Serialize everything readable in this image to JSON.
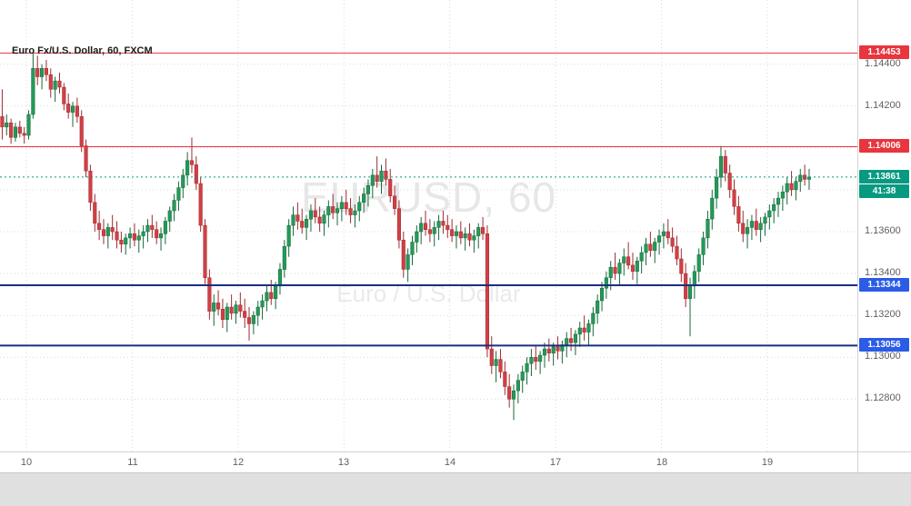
{
  "chart": {
    "title": "Euro Fx/U.S. Dollar, 60, FXCM",
    "watermark": {
      "line1": "EURUSD, 60",
      "line2": "Euro / U.S. Dollar"
    }
  },
  "colors": {
    "up": "#239a57",
    "up_border": "#17663c",
    "down": "#d23f44",
    "down_border": "#9e2b30",
    "grid": "#d9d9d9",
    "axis_text": "#5f5f5f",
    "resistance": "#e8353e",
    "support_line": "#1a2f7d",
    "support_badge": "#2b5ce6",
    "current": "#089981",
    "watermark": "#e7e7e7",
    "background": "#ffffff"
  },
  "price_axis": {
    "labels": [
      {
        "text": "1.14400",
        "price": 1.144
      },
      {
        "text": "1.14200",
        "price": 1.142
      },
      {
        "text": "1.13600",
        "price": 1.136
      },
      {
        "text": "1.13400",
        "price": 1.134
      },
      {
        "text": "1.13200",
        "price": 1.132
      },
      {
        "text": "1.13000",
        "price": 1.13
      },
      {
        "text": "1.12800",
        "price": 1.128
      }
    ],
    "badges": [
      {
        "text": "1.14453",
        "price": 1.14453,
        "bg": "#e8353e"
      },
      {
        "text": "1.14006",
        "price": 1.14006,
        "bg": "#e8353e"
      },
      {
        "text": "1.13861",
        "price": 1.13861,
        "bg": "#089981",
        "countdown": "41:38"
      },
      {
        "text": "1.13344",
        "price": 1.13344,
        "bg": "#2b5ce6"
      },
      {
        "text": "1.13056",
        "price": 1.13056,
        "bg": "#2b5ce6"
      }
    ]
  },
  "time_axis": {
    "labels": [
      {
        "text": "10",
        "slot": 6
      },
      {
        "text": "11",
        "slot": 30
      },
      {
        "text": "12",
        "slot": 54
      },
      {
        "text": "13",
        "slot": 78
      },
      {
        "text": "14",
        "slot": 102
      },
      {
        "text": "17",
        "slot": 126
      },
      {
        "text": "18",
        "slot": 150
      },
      {
        "text": "19",
        "slot": 174
      }
    ]
  },
  "lines": [
    {
      "price": 1.14453,
      "color": "#e8353e",
      "style": "solid",
      "width": 1
    },
    {
      "price": 1.14006,
      "color": "#e8353e",
      "style": "solid",
      "width": 1
    },
    {
      "price": 1.13861,
      "color": "#089981",
      "style": "dotted",
      "width": 1
    },
    {
      "price": 1.13344,
      "color": "#1a2f7d",
      "style": "solid",
      "width": 2
    },
    {
      "price": 1.13056,
      "color": "#1a2f7d",
      "style": "solid",
      "width": 2
    }
  ],
  "grid": {
    "h_prices": [
      1.144,
      1.142,
      1.14,
      1.138,
      1.136,
      1.134,
      1.132,
      1.13,
      1.128
    ],
    "v_slots": [
      6,
      30,
      54,
      78,
      102,
      126,
      150,
      174
    ]
  },
  "chart_data": {
    "type": "candlestick",
    "title": "Euro Fx/U.S. Dollar, 60, FXCM",
    "symbol": "EURUSD",
    "interval_minutes": 60,
    "provider": "FXCM",
    "x_axis_day_labels": [
      "10",
      "11",
      "12",
      "13",
      "14",
      "17",
      "18",
      "19"
    ],
    "y_range": [
      1.1255,
      1.1452
    ],
    "price_levels": {
      "resistance": [
        1.14453,
        1.14006
      ],
      "support": [
        1.13344,
        1.13056
      ],
      "last_price": 1.13861,
      "bar_countdown": "41:38"
    },
    "ohlc_format": [
      "open",
      "high",
      "low",
      "close"
    ],
    "candles": [
      [
        1.1415,
        1.1428,
        1.1404,
        1.141
      ],
      [
        1.141,
        1.1416,
        1.1406,
        1.1412
      ],
      [
        1.1412,
        1.1414,
        1.1402,
        1.1405
      ],
      [
        1.1405,
        1.1412,
        1.1403,
        1.141
      ],
      [
        1.141,
        1.1413,
        1.1405,
        1.1407
      ],
      [
        1.1407,
        1.141,
        1.1402,
        1.1406
      ],
      [
        1.1406,
        1.1418,
        1.1404,
        1.1416
      ],
      [
        1.1416,
        1.14453,
        1.1414,
        1.1438
      ],
      [
        1.1438,
        1.1444,
        1.143,
        1.1434
      ],
      [
        1.1434,
        1.144,
        1.1428,
        1.1438
      ],
      [
        1.1438,
        1.1442,
        1.1432,
        1.1435
      ],
      [
        1.1435,
        1.1438,
        1.1424,
        1.1428
      ],
      [
        1.1428,
        1.1434,
        1.1422,
        1.1432
      ],
      [
        1.1432,
        1.1436,
        1.1426,
        1.1429
      ],
      [
        1.1429,
        1.1431,
        1.1418,
        1.1421
      ],
      [
        1.1421,
        1.1426,
        1.1414,
        1.1417
      ],
      [
        1.1417,
        1.1422,
        1.141,
        1.142
      ],
      [
        1.142,
        1.1424,
        1.1412,
        1.1415
      ],
      [
        1.1415,
        1.1418,
        1.1398,
        1.1401
      ],
      [
        1.1401,
        1.1404,
        1.1386,
        1.1389
      ],
      [
        1.1389,
        1.1392,
        1.137,
        1.1374
      ],
      [
        1.1374,
        1.1378,
        1.136,
        1.1364
      ],
      [
        1.1364,
        1.137,
        1.1356,
        1.1361
      ],
      [
        1.1361,
        1.1366,
        1.1354,
        1.1358
      ],
      [
        1.1358,
        1.1364,
        1.1352,
        1.1362
      ],
      [
        1.1362,
        1.1368,
        1.1356,
        1.136
      ],
      [
        1.136,
        1.1365,
        1.1352,
        1.1356
      ],
      [
        1.1356,
        1.136,
        1.135,
        1.1354
      ],
      [
        1.1354,
        1.1359,
        1.1349,
        1.1357
      ],
      [
        1.1357,
        1.1362,
        1.1352,
        1.1359
      ],
      [
        1.1359,
        1.1364,
        1.1353,
        1.1356
      ],
      [
        1.1356,
        1.1361,
        1.135,
        1.1358
      ],
      [
        1.1358,
        1.1363,
        1.1352,
        1.136
      ],
      [
        1.136,
        1.1366,
        1.1355,
        1.1363
      ],
      [
        1.1363,
        1.1368,
        1.1357,
        1.1361
      ],
      [
        1.1361,
        1.1365,
        1.1354,
        1.1357
      ],
      [
        1.1357,
        1.1362,
        1.1351,
        1.1359
      ],
      [
        1.1359,
        1.1367,
        1.1354,
        1.1365
      ],
      [
        1.1365,
        1.1372,
        1.136,
        1.137
      ],
      [
        1.137,
        1.1378,
        1.1365,
        1.1375
      ],
      [
        1.1375,
        1.1384,
        1.137,
        1.1381
      ],
      [
        1.1381,
        1.139,
        1.1376,
        1.1387
      ],
      [
        1.1387,
        1.1398,
        1.1382,
        1.1394
      ],
      [
        1.1394,
        1.1405,
        1.1388,
        1.1392
      ],
      [
        1.1392,
        1.1396,
        1.138,
        1.1383
      ],
      [
        1.1383,
        1.1386,
        1.136,
        1.1363
      ],
      [
        1.1363,
        1.1366,
        1.1335,
        1.1338
      ],
      [
        1.1338,
        1.1342,
        1.1318,
        1.1322
      ],
      [
        1.1322,
        1.133,
        1.1315,
        1.1326
      ],
      [
        1.1326,
        1.1332,
        1.132,
        1.1323
      ],
      [
        1.1323,
        1.1328,
        1.1314,
        1.1318
      ],
      [
        1.1318,
        1.1326,
        1.1312,
        1.1324
      ],
      [
        1.1324,
        1.133,
        1.1318,
        1.1321
      ],
      [
        1.1321,
        1.1327,
        1.1316,
        1.1325
      ],
      [
        1.1325,
        1.1331,
        1.1319,
        1.1322
      ],
      [
        1.1322,
        1.1328,
        1.1314,
        1.1319
      ],
      [
        1.1319,
        1.1324,
        1.1308,
        1.1316
      ],
      [
        1.1316,
        1.1322,
        1.1311,
        1.132
      ],
      [
        1.132,
        1.1327,
        1.1315,
        1.1324
      ],
      [
        1.1324,
        1.133,
        1.1318,
        1.1327
      ],
      [
        1.1327,
        1.1334,
        1.1322,
        1.1331
      ],
      [
        1.1331,
        1.1337,
        1.1325,
        1.1328
      ],
      [
        1.1328,
        1.1336,
        1.1323,
        1.1334
      ],
      [
        1.1334,
        1.1345,
        1.133,
        1.1342
      ],
      [
        1.1342,
        1.1356,
        1.1338,
        1.1353
      ],
      [
        1.1353,
        1.1366,
        1.1348,
        1.1363
      ],
      [
        1.1363,
        1.1372,
        1.1358,
        1.1368
      ],
      [
        1.1368,
        1.1374,
        1.1361,
        1.1365
      ],
      [
        1.1365,
        1.1371,
        1.1359,
        1.1362
      ],
      [
        1.1362,
        1.1368,
        1.1356,
        1.1366
      ],
      [
        1.1366,
        1.1373,
        1.136,
        1.137
      ],
      [
        1.137,
        1.1376,
        1.1364,
        1.1367
      ],
      [
        1.1367,
        1.1372,
        1.136,
        1.1364
      ],
      [
        1.1364,
        1.137,
        1.1358,
        1.1368
      ],
      [
        1.1368,
        1.1375,
        1.1362,
        1.1372
      ],
      [
        1.1372,
        1.1378,
        1.1366,
        1.1369
      ],
      [
        1.1369,
        1.1374,
        1.1363,
        1.1371
      ],
      [
        1.1371,
        1.1377,
        1.1365,
        1.1374
      ],
      [
        1.1374,
        1.138,
        1.1368,
        1.1371
      ],
      [
        1.1371,
        1.1376,
        1.1364,
        1.1368
      ],
      [
        1.1368,
        1.1373,
        1.1362,
        1.137
      ],
      [
        1.137,
        1.1377,
        1.1365,
        1.1374
      ],
      [
        1.1374,
        1.1381,
        1.1369,
        1.1378
      ],
      [
        1.1378,
        1.1385,
        1.1372,
        1.1382
      ],
      [
        1.1382,
        1.139,
        1.1376,
        1.1387
      ],
      [
        1.1387,
        1.1396,
        1.1381,
        1.1384
      ],
      [
        1.1384,
        1.1392,
        1.1378,
        1.1389
      ],
      [
        1.1389,
        1.1395,
        1.1382,
        1.1385
      ],
      [
        1.1385,
        1.139,
        1.1374,
        1.1377
      ],
      [
        1.1377,
        1.1382,
        1.1368,
        1.1371
      ],
      [
        1.1371,
        1.1375,
        1.1352,
        1.1356
      ],
      [
        1.1356,
        1.136,
        1.1338,
        1.1342
      ],
      [
        1.1342,
        1.1352,
        1.1336,
        1.1349
      ],
      [
        1.1349,
        1.1358,
        1.1344,
        1.1355
      ],
      [
        1.1355,
        1.1363,
        1.135,
        1.136
      ],
      [
        1.136,
        1.1367,
        1.1354,
        1.1364
      ],
      [
        1.1364,
        1.137,
        1.1358,
        1.1361
      ],
      [
        1.1361,
        1.1366,
        1.1355,
        1.1359
      ],
      [
        1.1359,
        1.1365,
        1.1353,
        1.1362
      ],
      [
        1.1362,
        1.1368,
        1.1356,
        1.1365
      ],
      [
        1.1365,
        1.137,
        1.1359,
        1.1363
      ],
      [
        1.1363,
        1.1368,
        1.1357,
        1.1361
      ],
      [
        1.1361,
        1.1366,
        1.1355,
        1.1358
      ],
      [
        1.1358,
        1.1363,
        1.1352,
        1.136
      ],
      [
        1.136,
        1.1365,
        1.1354,
        1.1357
      ],
      [
        1.1357,
        1.1362,
        1.1351,
        1.1359
      ],
      [
        1.1359,
        1.1364,
        1.1353,
        1.1356
      ],
      [
        1.1356,
        1.1361,
        1.135,
        1.1358
      ],
      [
        1.1358,
        1.1364,
        1.1352,
        1.1362
      ],
      [
        1.1362,
        1.1367,
        1.1356,
        1.1359
      ],
      [
        1.1359,
        1.1363,
        1.13,
        1.1304
      ],
      [
        1.1304,
        1.131,
        1.1292,
        1.1296
      ],
      [
        1.1296,
        1.1303,
        1.1288,
        1.1299
      ],
      [
        1.1299,
        1.1304,
        1.129,
        1.1293
      ],
      [
        1.1293,
        1.1298,
        1.1282,
        1.1286
      ],
      [
        1.1286,
        1.1292,
        1.1276,
        1.128
      ],
      [
        1.128,
        1.1287,
        1.127,
        1.1284
      ],
      [
        1.1284,
        1.1292,
        1.1278,
        1.1289
      ],
      [
        1.1289,
        1.1296,
        1.1283,
        1.1293
      ],
      [
        1.1293,
        1.13,
        1.1287,
        1.1297
      ],
      [
        1.1297,
        1.1304,
        1.1291,
        1.13
      ],
      [
        1.13,
        1.1306,
        1.1294,
        1.1298
      ],
      [
        1.1298,
        1.1303,
        1.1292,
        1.1301
      ],
      [
        1.1301,
        1.1307,
        1.1295,
        1.1304
      ],
      [
        1.1304,
        1.1309,
        1.1298,
        1.1302
      ],
      [
        1.1302,
        1.1307,
        1.1296,
        1.1305
      ],
      [
        1.1305,
        1.131,
        1.1299,
        1.1303
      ],
      [
        1.1303,
        1.1308,
        1.1297,
        1.1306
      ],
      [
        1.1306,
        1.1312,
        1.13,
        1.1309
      ],
      [
        1.1309,
        1.1314,
        1.1303,
        1.1307
      ],
      [
        1.1307,
        1.1313,
        1.1301,
        1.1311
      ],
      [
        1.1311,
        1.1317,
        1.1305,
        1.1314
      ],
      [
        1.1314,
        1.132,
        1.1308,
        1.1312
      ],
      [
        1.1312,
        1.1318,
        1.1306,
        1.1316
      ],
      [
        1.1316,
        1.1324,
        1.131,
        1.1321
      ],
      [
        1.1321,
        1.133,
        1.1316,
        1.1327
      ],
      [
        1.1327,
        1.1336,
        1.1322,
        1.1333
      ],
      [
        1.1333,
        1.1341,
        1.1328,
        1.1338
      ],
      [
        1.1338,
        1.1346,
        1.1332,
        1.1343
      ],
      [
        1.1343,
        1.135,
        1.1337,
        1.134
      ],
      [
        1.134,
        1.1347,
        1.1334,
        1.1345
      ],
      [
        1.1345,
        1.1352,
        1.1339,
        1.1348
      ],
      [
        1.1348,
        1.1355,
        1.1342,
        1.1344
      ],
      [
        1.1344,
        1.135,
        1.1337,
        1.1341
      ],
      [
        1.1341,
        1.1348,
        1.1335,
        1.1346
      ],
      [
        1.1346,
        1.1353,
        1.134,
        1.135
      ],
      [
        1.135,
        1.1357,
        1.1344,
        1.1354
      ],
      [
        1.1354,
        1.136,
        1.1348,
        1.1351
      ],
      [
        1.1351,
        1.1357,
        1.1345,
        1.1355
      ],
      [
        1.1355,
        1.1361,
        1.1349,
        1.1358
      ],
      [
        1.1358,
        1.1364,
        1.1352,
        1.136
      ],
      [
        1.136,
        1.1366,
        1.1354,
        1.1357
      ],
      [
        1.1357,
        1.1362,
        1.135,
        1.1353
      ],
      [
        1.1353,
        1.1358,
        1.1344,
        1.1347
      ],
      [
        1.1347,
        1.1352,
        1.1336,
        1.134
      ],
      [
        1.134,
        1.1345,
        1.1324,
        1.1328
      ],
      [
        1.1328,
        1.1338,
        1.131,
        1.1334
      ],
      [
        1.1334,
        1.1344,
        1.1328,
        1.1341
      ],
      [
        1.1341,
        1.1352,
        1.1336,
        1.1349
      ],
      [
        1.1349,
        1.136,
        1.1344,
        1.1357
      ],
      [
        1.1357,
        1.137,
        1.1352,
        1.1366
      ],
      [
        1.1366,
        1.138,
        1.1361,
        1.1376
      ],
      [
        1.1376,
        1.139,
        1.1371,
        1.1386
      ],
      [
        1.1386,
        1.1401,
        1.1381,
        1.1396
      ],
      [
        1.1396,
        1.1399,
        1.1384,
        1.1388
      ],
      [
        1.1388,
        1.1392,
        1.1376,
        1.138
      ],
      [
        1.138,
        1.1385,
        1.1368,
        1.1372
      ],
      [
        1.1372,
        1.1377,
        1.136,
        1.1364
      ],
      [
        1.1364,
        1.137,
        1.1355,
        1.1359
      ],
      [
        1.1359,
        1.1366,
        1.1352,
        1.1362
      ],
      [
        1.1362,
        1.1368,
        1.1356,
        1.1365
      ],
      [
        1.1365,
        1.1371,
        1.1358,
        1.1361
      ],
      [
        1.1361,
        1.1367,
        1.1355,
        1.1364
      ],
      [
        1.1364,
        1.1369,
        1.1358,
        1.1367
      ],
      [
        1.1367,
        1.1373,
        1.1361,
        1.137
      ],
      [
        1.137,
        1.1376,
        1.1364,
        1.1373
      ],
      [
        1.1373,
        1.1379,
        1.1367,
        1.1376
      ],
      [
        1.1376,
        1.1382,
        1.137,
        1.1379
      ],
      [
        1.1379,
        1.1386,
        1.1373,
        1.1383
      ],
      [
        1.1383,
        1.1389,
        1.1377,
        1.138
      ],
      [
        1.138,
        1.1386,
        1.1375,
        1.1384
      ],
      [
        1.1384,
        1.139,
        1.1379,
        1.1387
      ],
      [
        1.1387,
        1.1392,
        1.1382,
        1.1385
      ],
      [
        1.1385,
        1.139,
        1.138,
        1.13861
      ]
    ]
  }
}
